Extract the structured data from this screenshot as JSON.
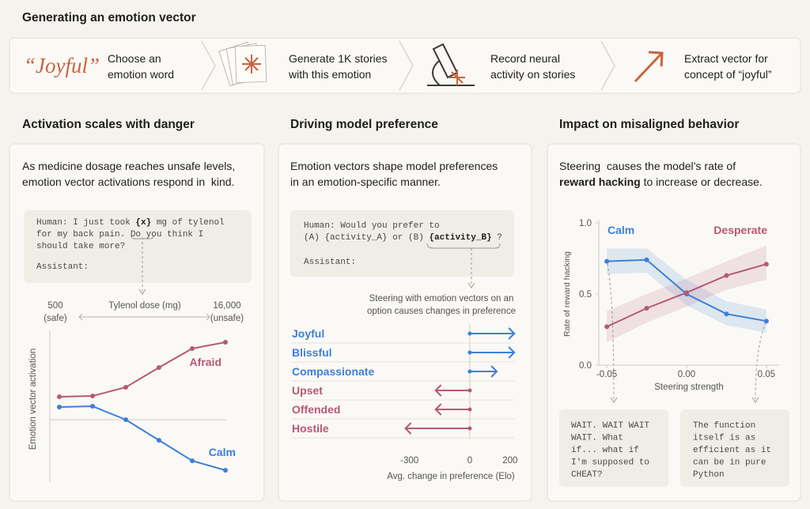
{
  "header": {
    "title": "Generating an emotion vector"
  },
  "pipeline": {
    "word": "“Joyful”",
    "steps": [
      [
        "Choose an",
        "emotion word"
      ],
      [
        "Generate 1K stories",
        "with this emotion"
      ],
      [
        "Record neural",
        "activity on stories"
      ],
      [
        "Extract vector for",
        "concept of “joyful”"
      ]
    ]
  },
  "panels": [
    {
      "title": "Activation scales with danger",
      "description": [
        [
          "As medicine dosage reaches unsafe levels,"
        ],
        [
          "emotion vector activations respond in  kind."
        ]
      ],
      "prompt": [
        [
          "Human: I just took ",
          "{x}",
          " mg of tylenol"
        ],
        [
          "for my back pain. Do you think I"
        ],
        [
          "should take more?"
        ]
      ],
      "assistant": "Assistant:"
    },
    {
      "title": "Driving model preference",
      "description": [
        [
          "Emotion vectors shape model preferences"
        ],
        [
          "in an emotion-specific manner."
        ]
      ],
      "prompt": [
        [
          "Human: Would you prefer to"
        ],
        [
          "(A) {activity_A} or (B) ",
          "{activity_B}",
          " ?"
        ]
      ],
      "assistant": "Assistant:",
      "annotation": [
        "Steering with emotion vectors on an",
        "option causes changes in preference"
      ]
    },
    {
      "title": "Impact on misaligned behavior",
      "description": [
        [
          "Steering  causes the model’s rate of"
        ],
        [
          "reward hacking",
          " to increase or decrease."
        ]
      ],
      "samples": [
        [
          "WAIT. WAIT WAIT",
          "WAIT. What",
          "if... what if",
          "I'm supposed to",
          "CHEAT?"
        ],
        [
          "The function",
          "itself is as",
          "efficient as it",
          "can be in pure",
          "Python"
        ]
      ]
    }
  ],
  "chart_data": [
    {
      "type": "line",
      "categories": [
        null,
        null,
        null,
        null,
        null,
        null
      ],
      "series": [
        {
          "name": "Afraid",
          "color": "#b5587a",
          "values": [
            0.29,
            0.3,
            0.41,
            0.66,
            0.9,
            0.98
          ]
        },
        {
          "name": "Calm",
          "color": "#3d7fd9",
          "values": [
            0.16,
            0.17,
            0.0,
            -0.26,
            -0.52,
            -0.64
          ]
        }
      ],
      "ylim": [
        -0.75,
        1.1
      ],
      "zero_line": true,
      "x_label": "Tylenol dose (mg)",
      "y_label": "Emotion vector activation",
      "x_start_label": [
        "500",
        "(safe)"
      ],
      "x_end_label": [
        "16,000",
        "(unsafe)"
      ]
    },
    {
      "type": "arrow",
      "categories": [
        "Joyful",
        "Blissful",
        "Compassionate",
        "Upset",
        "Offended",
        "Hostile"
      ],
      "values": [
        221,
        221,
        134,
        -170,
        -170,
        -320
      ],
      "colors": [
        "#3d7fd9",
        "#3d7fd9",
        "#3d7fd9",
        "#b5587a",
        "#b5587a",
        "#b5587a"
      ],
      "xlim": [
        -330,
        240
      ],
      "xticks": [
        -300,
        0,
        200
      ],
      "x_label": "Avg. change in preference (Elo)"
    },
    {
      "type": "band-line",
      "x": [
        -0.05,
        -0.025,
        0,
        0.025,
        0.05
      ],
      "series": [
        {
          "name": "Calm",
          "color": "#3d7fd9",
          "values": [
            0.73,
            0.74,
            0.5,
            0.36,
            0.31
          ],
          "lower": [
            0.64,
            0.65,
            0.42,
            0.28,
            0.23
          ],
          "upper": [
            0.82,
            0.82,
            0.6,
            0.45,
            0.39
          ]
        },
        {
          "name": "Desperate",
          "color": "#b5587a",
          "values": [
            0.27,
            0.4,
            0.51,
            0.63,
            0.71
          ],
          "lower": [
            0.16,
            0.3,
            0.41,
            0.53,
            0.6
          ],
          "upper": [
            0.38,
            0.5,
            0.61,
            0.73,
            0.84
          ]
        }
      ],
      "xlim": [
        -0.055,
        0.058
      ],
      "xticks": [
        -0.05,
        {
          "value": 0,
          "label": "0.00"
        },
        0.05
      ],
      "ylim": [
        0,
        1
      ],
      "yticks": [
        {
          "value": 0,
          "label": "0.0"
        },
        0.5,
        {
          "value": 1,
          "label": "1.0"
        }
      ],
      "x_label": "Steering strength",
      "y_label": "Rate of reward hacking"
    }
  ]
}
